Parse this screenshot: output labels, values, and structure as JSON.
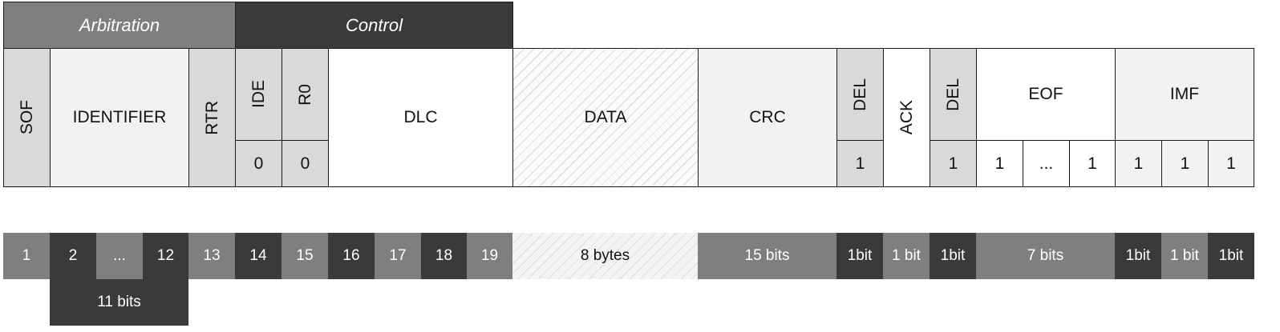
{
  "headers": {
    "arbitration": "Arbitration",
    "control": "Control"
  },
  "fields": {
    "sof": "SOF",
    "identifier": "IDENTIFIER",
    "rtr": "RTR",
    "ide": "IDE",
    "r0": "R0",
    "dlc": "DLC",
    "data": "DATA",
    "crc": "CRC",
    "crc_del": "DEL",
    "ack": "ACK",
    "ack_del": "DEL",
    "eof": "EOF",
    "imf": "IMF"
  },
  "values": {
    "ide": "0",
    "r0": "0",
    "crc_del": "1",
    "ack_del": "1",
    "eof": [
      "1",
      "...",
      "1"
    ],
    "imf": [
      "1",
      "1",
      "1"
    ]
  },
  "bits": [
    "1",
    "2",
    "...",
    "12",
    "13",
    "14",
    "15",
    "16",
    "17",
    "18",
    "19",
    "8 bytes",
    "15 bits",
    "1bit",
    "1 bit",
    "1bit",
    "7 bits",
    "1bit",
    "1 bit",
    "1bit"
  ],
  "identifier_size": "11 bits",
  "colors": {
    "dark": "#3a3a3a",
    "medium": "#7f7f7f",
    "light": "#d9d9d9",
    "very_light": "#f2f2f2"
  }
}
